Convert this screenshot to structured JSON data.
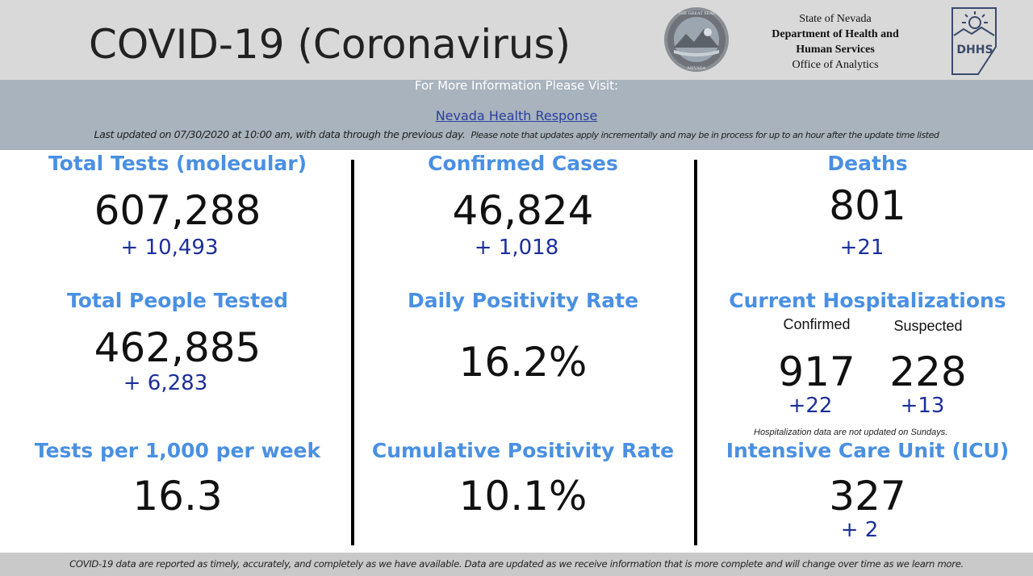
{
  "header": {
    "title": "COVID-19 (Coronavirus)",
    "agency": {
      "line1": "State of Nevada",
      "line2": "Department of Health and",
      "line3": "Human Services",
      "line4": "Office of Analytics"
    },
    "seal_icon": "nevada-state-seal",
    "logo_icon": "dhhs-logo"
  },
  "info": {
    "visit_text": "For More Information Please Visit:",
    "link_text": "Nevada Health Response",
    "updated_main": "Last updated on 07/30/2020 at 10:00 am, with data through the previous day.",
    "updated_note": "Please note that updates apply incrementally and may be in process for up to an hour after the update time listed"
  },
  "stats": {
    "total_tests": {
      "title": "Total Tests (molecular)",
      "value": "607,288",
      "delta": "+ 10,493"
    },
    "confirmed_cases": {
      "title": "Confirmed Cases",
      "value": "46,824",
      "delta": "+ 1,018"
    },
    "deaths": {
      "title": "Deaths",
      "value": "801",
      "delta": "+21"
    },
    "people_tested": {
      "title": "Total People Tested",
      "value": "462,885",
      "delta": "+  6,283"
    },
    "daily_positivity": {
      "title": "Daily Positivity Rate",
      "value": "16.2%"
    },
    "hospitalizations": {
      "title": "Current Hospitalizations",
      "confirmed_label": "Confirmed",
      "suspected_label": "Suspected",
      "confirmed_value": "917",
      "suspected_value": "228",
      "confirmed_delta": "+22",
      "suspected_delta": "+13",
      "note": "Hospitalization data are not updated on Sundays."
    },
    "tests_per_1000": {
      "title": "Tests per 1,000 per week",
      "value": "16.3"
    },
    "cumulative_positivity": {
      "title": "Cumulative Positivity Rate",
      "value": "10.1%"
    },
    "icu": {
      "title": "Intensive Care Unit (ICU)",
      "value": "327",
      "delta": "+ 2"
    }
  },
  "footer": {
    "text": "COVID-19 data are reported as timely, accurately, and completely as we have available.  Data are updated as we receive information that is more complete and will change over time as we learn more."
  },
  "colors": {
    "title_blue": "#4a90e2",
    "delta_navy": "#1c2f9a",
    "header_gray": "#d9d9d9",
    "infobar_gray": "#a8b3bd",
    "footer_gray": "#c9c9c9"
  }
}
